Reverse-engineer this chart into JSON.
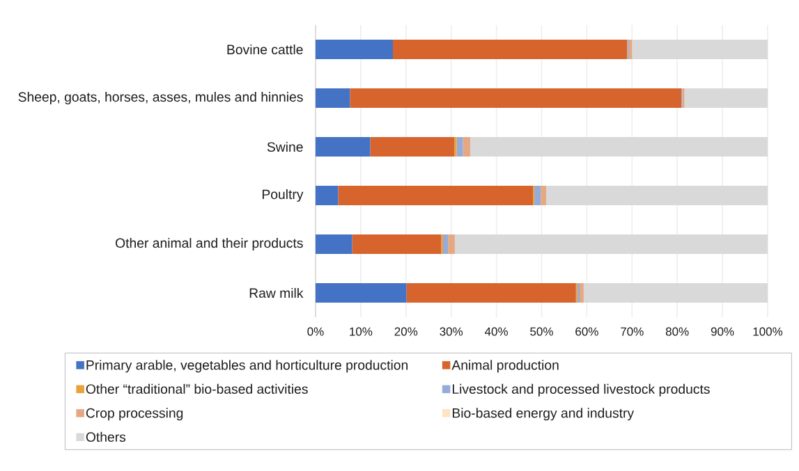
{
  "chart_data": {
    "type": "bar",
    "orientation": "horizontal",
    "stacked": true,
    "categories": [
      "Bovine cattle",
      "Sheep, goats, horses, asses, mules and hinnies",
      "Swine",
      "Poultry",
      "Other animal and their products",
      "Raw milk"
    ],
    "series": [
      {
        "name": "Primary arable, vegetables and horticulture production",
        "color": "#4472c4",
        "values": [
          17.1,
          7.6,
          12.1,
          5.0,
          8.1,
          20.1
        ]
      },
      {
        "name": "Animal production",
        "color": "#d7642d",
        "values": [
          51.8,
          73.3,
          18.6,
          43.1,
          19.7,
          37.5
        ]
      },
      {
        "name": "Other “traditional” bio-based activities",
        "color": "#e8a33a",
        "values": [
          0.1,
          0,
          0.5,
          0.3,
          0.4,
          0.3
        ]
      },
      {
        "name": "Livestock and processed livestock products",
        "color": "#95abd9",
        "values": [
          0.3,
          0.2,
          1.4,
          1.4,
          1.1,
          0.5
        ]
      },
      {
        "name": "Crop processing",
        "color": "#e5a882",
        "values": [
          0.7,
          0.5,
          1.6,
          1.2,
          1.5,
          0.9
        ]
      },
      {
        "name": "Bio-based energy and industry",
        "color": "#fce4c4",
        "values": [
          0,
          0,
          0,
          0,
          0,
          0
        ]
      },
      {
        "name": "Others",
        "color": "#d9d9d9",
        "values": [
          30.0,
          18.4,
          65.8,
          49.0,
          69.2,
          40.7
        ]
      }
    ],
    "xlim": [
      0,
      100
    ],
    "xticks": [
      {
        "value": 0,
        "label": "0%"
      },
      {
        "value": 10,
        "label": "10%"
      },
      {
        "value": 20,
        "label": "20%"
      },
      {
        "value": 30,
        "label": "30%"
      },
      {
        "value": 40,
        "label": "40%"
      },
      {
        "value": 50,
        "label": "50%"
      },
      {
        "value": 60,
        "label": "60%"
      },
      {
        "value": 70,
        "label": "70%"
      },
      {
        "value": 80,
        "label": "80%"
      },
      {
        "value": 90,
        "label": "90%"
      },
      {
        "value": 100,
        "label": "100%"
      }
    ],
    "grid": "x",
    "legend": "bottom"
  }
}
